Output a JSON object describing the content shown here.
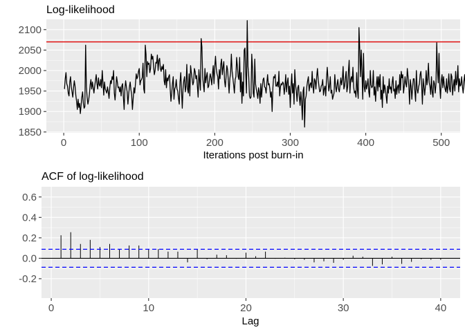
{
  "chart_data": [
    {
      "type": "line",
      "title": "Log-likelihood",
      "xlabel": "Iterations post burn-in",
      "ylabel": "",
      "xlim": [
        -23,
        525
      ],
      "ylim": [
        1848,
        2125
      ],
      "x_ticks": [
        0,
        100,
        200,
        300,
        400,
        500
      ],
      "y_ticks": [
        1850,
        1900,
        1950,
        2000,
        2050,
        2100
      ],
      "reference_line": {
        "y": 2070,
        "color": "#e00000"
      },
      "line_color": "#000000",
      "series": [
        {
          "values": [
            1955,
            1980,
            1995,
            1968,
            1962,
            1945,
            1938,
            1972,
            1985,
            1960,
            1948,
            1935,
            1958,
            1975,
            1962,
            1940,
            1925,
            1905,
            1930,
            1910,
            1920,
            1895,
            1915,
            1935,
            1948,
            1920,
            1908,
            1912,
            2062,
            1960,
            1935,
            1918,
            1928,
            1942,
            1965,
            1978,
            1955,
            1972,
            1958,
            1945,
            1962,
            1975,
            1990,
            1968,
            1955,
            1982,
            1965,
            1962,
            1978,
            1958,
            2000,
            1970,
            1940,
            1972,
            1955,
            1950,
            1945,
            1960,
            1948,
            1932,
            1958,
            1975,
            1968,
            1985,
            1978,
            2000,
            1945,
            1928,
            1955,
            1985,
            1972,
            1958,
            1960,
            1948,
            1960,
            1938,
            1963,
            1968,
            1935,
            1905,
            1955,
            1975,
            1960,
            1948,
            1918,
            1942,
            1960,
            1972,
            1953,
            1940,
            1905,
            1932,
            1958,
            1945,
            1968,
            1992,
            1980,
            1985,
            1998,
            2005,
            1965,
            1975,
            1978,
            1983,
            2018,
            1955,
            1945,
            2062,
            2040,
            1985,
            2022,
            2015,
            2018,
            1995,
            2005,
            2040,
            2028,
            2035,
            2010,
            1990,
            2000,
            2020,
            2018,
            2038,
            2000,
            2025,
            2030,
            2005,
            1998,
            2010,
            2003,
            2015,
            1975,
            1965,
            2002,
            1958,
            1982,
            1975,
            1985,
            1990,
            1955,
            1925,
            1945,
            1968,
            1985,
            1930,
            1955,
            1960,
            1978,
            1955,
            1950,
            1932,
            1918,
            1972,
            1995,
            1952,
            1908,
            1955,
            1975,
            1985,
            1948,
            1962,
            2015,
            1955,
            1945,
            1992,
            1938,
            2012,
            1995,
            1980,
            1965,
            1972,
            2005,
            1998,
            1980,
            1988,
            1962,
            1935,
            2002,
            1975,
            1952,
            2078,
            2058,
            1985,
            1965,
            1948,
            2005,
            1970,
            1985,
            1995,
            1958,
            1962,
            1978,
            1992,
            1982,
            1965,
            1992,
            2012,
            1968,
            2008,
            2035,
            2005,
            1992,
            1985,
            1955,
            2002,
            1980,
            2015,
            2028,
            1990,
            2008,
            2022,
            1975,
            1960,
            1985,
            2012,
            2002,
            1975,
            1945,
            1980,
            1995,
            2040,
            1998,
            1982,
            1965,
            1945,
            1978,
            1985,
            2032,
            2010,
            1985,
            1978,
            2032,
            1948,
            1995,
            1920,
            1972,
            1938,
            2050,
            2055,
            1995,
            1945,
            2122,
            2010,
            1985,
            1938,
            1932,
            1935,
            2040,
            2005,
            1945,
            1935,
            2028,
            1968,
            1955,
            1945,
            1932,
            1958,
            1948,
            1920,
            1968,
            1935,
            1960,
            1978,
            1982,
            1960,
            1958,
            1945,
            1970,
            1990,
            1965,
            1968,
            1955,
            1935,
            1948,
            1900,
            1958,
            1985,
            1982,
            1990,
            1962,
            1962,
            1972,
            1960,
            1998,
            1938,
            1960,
            1968,
            1965,
            1972,
            1968,
            1942,
            1960,
            1990,
            1948,
            1970,
            1982,
            1942,
            1962,
            1910,
            1962,
            1992,
            1945,
            1968,
            1918,
            2002,
            1965,
            1950,
            1925,
            1958,
            1964,
            1935,
            1915,
            1948,
            1925,
            1880,
            1950,
            1960,
            1862,
            1930,
            1938,
            1962,
            1975,
            1985,
            1950,
            1965,
            1970,
            1958,
            1998,
            1962,
            1945,
            1980,
            1975,
            1955,
            1985,
            2005,
            1978,
            1962,
            1948,
            1950,
            1962,
            1965,
            1978,
            1940,
            1955,
            1962,
            1938,
            1980,
            2008,
            1978,
            1950,
            1962,
            1985,
            1945,
            1952,
            1930,
            1938,
            1945,
            1990,
            1962,
            1948,
            1965,
            1978,
            1955,
            1948,
            1965,
            1982,
            1965,
            1978,
            2010,
            1955,
            1962,
            1982,
            1998,
            1948,
            1960,
            1998,
            2025,
            1945,
            1978,
            1985,
            1972,
            2008,
            1960,
            1945,
            1950,
            1935,
            1995,
            1952,
            1932,
            2105,
            2052,
            1985,
            2050,
            1995,
            1930,
            2042,
            1960,
            1948,
            1975,
            1955,
            1965,
            1980,
            1948,
            1935,
            2000,
            1965,
            1958,
            1962,
            2000,
            1940,
            1960,
            1925,
            1965,
            1985,
            1950,
            1985,
            1960,
            1990,
            1930,
            1952,
            1910,
            1985,
            1945,
            1965,
            1955,
            1938,
            1920,
            1962,
            1945,
            1980,
            1955,
            1960,
            1945,
            1972,
            1985,
            1950,
            1955,
            1932,
            1975,
            1942,
            1960,
            1965,
            1945,
            1990,
            1952,
            1998,
            1982,
            1990,
            1945,
            1962,
            1985,
            1968,
            1960,
            2005,
            1985,
            1962,
            1918,
            1978,
            1962,
            1930,
            1958,
            1980,
            1980,
            1950,
            1925,
            2000,
            1955,
            1945,
            1960,
            1968,
            1990,
            1998,
            1965,
            1918,
            1980,
            1962,
            1940,
            1962,
            2000,
            1965,
            1980,
            2018,
            1970,
            1962,
            1942,
            1985,
            1948,
            1935,
            1975,
            1968,
            1945,
            1968,
            2068,
            2000,
            1970,
            2042,
            1960,
            1932,
            1975,
            1990,
            1958,
            1985,
            1965,
            1955,
            1948,
            1980,
            1945,
            1962,
            1992,
            1955,
            1948,
            1992,
            1985,
            1940,
            1962,
            1978,
            1950,
            1998,
            1965,
            1975,
            2012,
            1948,
            1980,
            1962,
            1965,
            1985,
            1960,
            1945,
            1975,
            1990,
            1952,
            1995,
            1985,
            1975,
            1965,
            1962,
            1985,
            1960,
            1935,
            1988,
            1980,
            1992,
            1958,
            1960,
            1965
          ]
        }
      ]
    },
    {
      "type": "bar",
      "title": "ACF of log-likelihood",
      "xlabel": "Lag",
      "ylabel": "",
      "xlim": [
        -1,
        42
      ],
      "ylim": [
        -0.39,
        0.7
      ],
      "x_ticks": [
        0,
        10,
        20,
        30,
        40
      ],
      "y_tick_labels": [
        "-0.2",
        "0.0",
        "0.2",
        "0.4",
        "0.6"
      ],
      "y_ticks": [
        -0.2,
        0.0,
        0.2,
        0.4,
        0.6
      ],
      "confidence_bound": 0.088,
      "confidence_color": "#0000ff",
      "lags": [
        1,
        2,
        3,
        4,
        5,
        6,
        7,
        8,
        9,
        10,
        11,
        12,
        13,
        14,
        15,
        16,
        17,
        18,
        19,
        20,
        21,
        22,
        23,
        24,
        25,
        26,
        27,
        28,
        29,
        30,
        31,
        32,
        33,
        34,
        35,
        36,
        37,
        38,
        39,
        40
      ],
      "values": [
        0.225,
        0.255,
        0.14,
        0.18,
        0.11,
        0.14,
        0.09,
        0.125,
        0.125,
        0.09,
        0.09,
        0.065,
        0.065,
        -0.04,
        0.09,
        -0.01,
        0.035,
        0.03,
        -0.005,
        0.055,
        0.02,
        0.065,
        -0.005,
        0.005,
        -0.01,
        -0.015,
        -0.04,
        -0.03,
        -0.045,
        -0.015,
        0.025,
        0.015,
        -0.075,
        -0.06,
        0.015,
        -0.055,
        -0.035,
        -0.01,
        -0.015,
        -0.015
      ]
    }
  ]
}
